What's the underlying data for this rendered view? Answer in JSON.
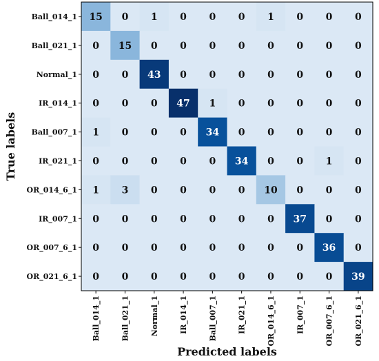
{
  "chart_data": {
    "type": "heatmap",
    "title": "",
    "xlabel": "Predicted labels",
    "ylabel": "True labels",
    "row_labels": [
      "Ball_014_1",
      "Ball_021_1",
      "Normal_1",
      "IR_014_1",
      "Ball_007_1",
      "IR_021_1",
      "OR_014_6_1",
      "IR_007_1",
      "OR_007_6_1",
      "OR_021_6_1"
    ],
    "col_labels": [
      "Ball_014_1",
      "Ball_021_1",
      "Normal_1",
      "IR_014_1",
      "Ball_007_1",
      "IR_021_1",
      "OR_014_6_1",
      "IR_007_1",
      "OR_007_6_1",
      "OR_021_6_1"
    ],
    "values": [
      [
        15,
        0,
        1,
        0,
        0,
        0,
        1,
        0,
        0,
        0
      ],
      [
        0,
        15,
        0,
        0,
        0,
        0,
        0,
        0,
        0,
        0
      ],
      [
        0,
        0,
        43,
        0,
        0,
        0,
        0,
        0,
        0,
        0
      ],
      [
        0,
        0,
        0,
        47,
        1,
        0,
        0,
        0,
        0,
        0
      ],
      [
        1,
        0,
        0,
        0,
        34,
        0,
        0,
        0,
        0,
        0
      ],
      [
        0,
        0,
        0,
        0,
        0,
        34,
        0,
        0,
        1,
        0
      ],
      [
        1,
        3,
        0,
        0,
        0,
        0,
        10,
        0,
        0,
        0
      ],
      [
        0,
        0,
        0,
        0,
        0,
        0,
        0,
        37,
        0,
        0
      ],
      [
        0,
        0,
        0,
        0,
        0,
        0,
        0,
        0,
        36,
        0
      ],
      [
        0,
        0,
        0,
        0,
        0,
        0,
        0,
        0,
        0,
        39
      ]
    ],
    "colormap": [
      "#dbe8f5",
      "#08306b"
    ],
    "vmin": 0,
    "vmax": 47,
    "colorbar": false
  }
}
